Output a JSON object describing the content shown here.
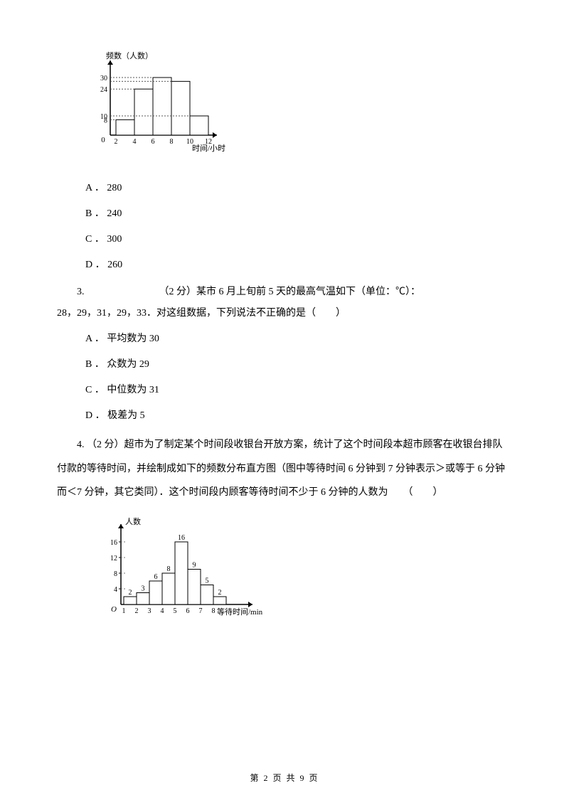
{
  "chart1": {
    "type": "histogram",
    "y_label": "频数（人数）",
    "x_label": "时间/小时",
    "x_ticks": [
      "2",
      "4",
      "6",
      "8",
      "10",
      "12"
    ],
    "y_ticks": [
      {
        "v": 8,
        "l": "8"
      },
      {
        "v": 10,
        "l": "10"
      },
      {
        "v": 24,
        "l": "24"
      },
      {
        "v": 30,
        "l": "30"
      }
    ],
    "bars": [
      {
        "x0": 2,
        "x1": 4,
        "h": 8,
        "dash": true
      },
      {
        "x0": 4,
        "x1": 6,
        "h": 24,
        "dash": true
      },
      {
        "x0": 6,
        "x1": 8,
        "h": 30,
        "dash": true
      },
      {
        "x0": 8,
        "x1": 10,
        "h": 28,
        "dash": true
      },
      {
        "x0": 10,
        "x1": 12,
        "h": 10,
        "dash": true
      }
    ],
    "axis_color": "#000000",
    "bar_stroke": "#000000",
    "bar_fill": "#ffffff",
    "dash_color": "#555555"
  },
  "q2": {
    "options": {
      "a": "A ． 280",
      "b": "B ． 240",
      "c": "C ． 300",
      "d": "D ． 260"
    }
  },
  "q3": {
    "line1": "3.　　　　　　　　（2 分）某市 6 月上旬前 5 天的最高气温如下（单位：℃）：",
    "line2": "28，29，31，29，33．对这组数据，下列说法不正确的是（　　）",
    "options": {
      "a": "A ． 平均数为 30",
      "b": "B ． 众数为 29",
      "c": "C ． 中位数为 31",
      "d": "D ． 极差为 5"
    }
  },
  "q4": {
    "text": "4. （2 分）超市为了制定某个时间段收银台开放方案，统计了这个时间段本超市顾客在收银台排队付款的等待时间，并绘制成如下的频数分布直方图（图中等待时间 6 分钟到 7 分钟表示＞或等于 6 分钟而＜7 分钟，其它类同）．这个时间段内顾客等待时间不少于 6 分钟的人数为　　（　　）"
  },
  "chart2": {
    "type": "histogram",
    "y_label": "人数",
    "x_label": "等待时间/min",
    "x_ticks": [
      "1",
      "2",
      "3",
      "4",
      "5",
      "6",
      "7",
      "8"
    ],
    "y_ticks": [
      {
        "v": 4,
        "l": "4"
      },
      {
        "v": 8,
        "l": "8"
      },
      {
        "v": 12,
        "l": "12"
      },
      {
        "v": 16,
        "l": "16"
      }
    ],
    "bars": [
      {
        "x0": 1,
        "x1": 2,
        "h": 2,
        "label": "2"
      },
      {
        "x0": 2,
        "x1": 3,
        "h": 3,
        "label": "3"
      },
      {
        "x0": 3,
        "x1": 4,
        "h": 6,
        "label": "6"
      },
      {
        "x0": 4,
        "x1": 5,
        "h": 8,
        "label": "8"
      },
      {
        "x0": 5,
        "x1": 6,
        "h": 16,
        "label": "16"
      },
      {
        "x0": 6,
        "x1": 7,
        "h": 9,
        "label": "9"
      },
      {
        "x0": 7,
        "x1": 8,
        "h": 5,
        "label": "5"
      },
      {
        "x0": 8,
        "x1": 9,
        "h": 2,
        "label": "2"
      }
    ],
    "axis_color": "#000000",
    "bar_stroke": "#000000",
    "bar_fill": "#ffffff",
    "dash_color": "#777777"
  },
  "footer": "第 2 页 共 9 页"
}
